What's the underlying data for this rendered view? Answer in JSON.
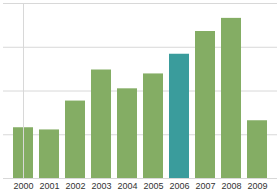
{
  "chart_data": {
    "type": "bar",
    "categories": [
      "2000",
      "2001",
      "2002",
      "2003",
      "2004",
      "2005",
      "2006",
      "2007",
      "2008",
      "2009"
    ],
    "values": [
      1.16,
      1.11,
      1.77,
      2.48,
      2.05,
      2.39,
      2.84,
      3.36,
      3.66,
      1.32
    ],
    "colors": [
      "#84ad64",
      "#84ad64",
      "#84ad64",
      "#84ad64",
      "#84ad64",
      "#84ad64",
      "#3a9c9c",
      "#84ad64",
      "#84ad64",
      "#84ad64"
    ],
    "ylim": [
      0,
      4
    ],
    "yticks": [
      0,
      1,
      2,
      3,
      4
    ],
    "grid": true,
    "tick_labels": "x"
  }
}
